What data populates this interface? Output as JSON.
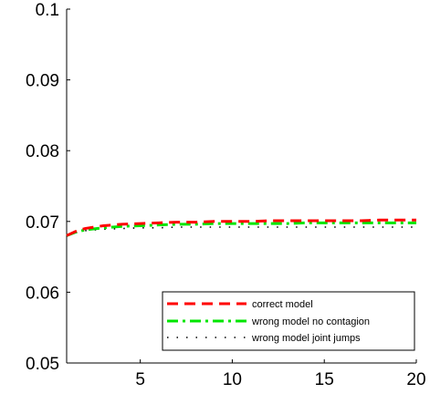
{
  "chart_data": {
    "type": "line",
    "title": "",
    "xlabel": "",
    "ylabel": "",
    "xlim": [
      1,
      20
    ],
    "ylim": [
      0.05,
      0.1
    ],
    "xticks": [
      5,
      10,
      15,
      20
    ],
    "xtick_labels": [
      "5",
      "10",
      "15",
      "20"
    ],
    "yticks": [
      0.05,
      0.06,
      0.07,
      0.08,
      0.09,
      0.1
    ],
    "ytick_labels": [
      "0.05",
      "0.06",
      "0.07",
      "0.08",
      "0.09",
      "0.1"
    ],
    "grid": false,
    "legend_position": "bottom-right",
    "x": [
      1,
      1.5,
      2,
      3,
      4,
      5,
      6,
      7,
      8,
      9,
      10,
      11,
      12,
      13,
      14,
      15,
      16,
      17,
      18,
      19,
      20
    ],
    "series": [
      {
        "name": "correct model",
        "color": "#ff0000",
        "style": "dashed",
        "values": [
          0.068,
          0.0686,
          0.069,
          0.0694,
          0.0696,
          0.0697,
          0.0698,
          0.0699,
          0.0699,
          0.07,
          0.07,
          0.07,
          0.0701,
          0.0701,
          0.0701,
          0.0701,
          0.0701,
          0.0701,
          0.0702,
          0.0702,
          0.0702
        ]
      },
      {
        "name": "wrong model no contagion",
        "color": "#00e600",
        "style": "dashdot",
        "values": [
          0.068,
          0.0685,
          0.0688,
          0.0691,
          0.0693,
          0.0694,
          0.0695,
          0.0696,
          0.0696,
          0.0697,
          0.0697,
          0.0697,
          0.0697,
          0.0697,
          0.0698,
          0.0698,
          0.0698,
          0.0698,
          0.0698,
          0.0698,
          0.0698
        ]
      },
      {
        "name": "wrong model joint jumps",
        "color": "#000000",
        "style": "dotted",
        "values": [
          0.068,
          0.0684,
          0.0687,
          0.0689,
          0.069,
          0.0691,
          0.0691,
          0.0692,
          0.0692,
          0.0692,
          0.0692,
          0.0692,
          0.0692,
          0.0692,
          0.0692,
          0.0692,
          0.0692,
          0.0692,
          0.0692,
          0.0692,
          0.0692
        ]
      }
    ]
  }
}
